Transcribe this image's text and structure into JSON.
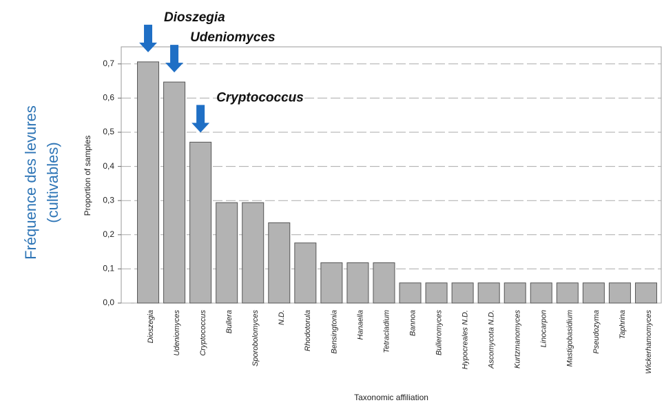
{
  "chart_data": {
    "type": "bar",
    "side_label": [
      "Fréquence des levures",
      "(cultivables)"
    ],
    "ylabel": "Proportion of samples",
    "xlabel": "Taxonomic affiliation",
    "annotations": [
      "Dioszegia",
      "Udeniomyces",
      "Cryptococcus"
    ],
    "categories": [
      "Dioszegia",
      "Udeniomyces",
      "Cryptococcus",
      "Bullera",
      "Sporobolomyces",
      "N.D.",
      "Rhodotorula",
      "Bensingtonia",
      "Hanaella",
      "Tetracladium",
      "Bannoa",
      "Bulleromyces",
      "Hypocreales N.D.",
      "Ascomycota N.D.",
      "Kurtzmanomyces",
      "Linocarpon",
      "Mastigobasidium",
      "Pseudozyma",
      "Taphrina",
      "Wickerhamomyces"
    ],
    "values": [
      0.706,
      0.647,
      0.471,
      0.294,
      0.294,
      0.235,
      0.176,
      0.118,
      0.118,
      0.118,
      0.059,
      0.059,
      0.059,
      0.059,
      0.059,
      0.059,
      0.059,
      0.059,
      0.059,
      0.059
    ],
    "color": "#b3b3b3",
    "arrow_color": "#1f6fc5",
    "ylim": [
      0,
      0.75
    ],
    "yticks": [
      {
        "value": 0,
        "label": "0,0"
      },
      {
        "value": 0.1,
        "label": "0,1"
      },
      {
        "value": 0.2,
        "label": "0,2"
      },
      {
        "value": 0.3,
        "label": "0,3"
      },
      {
        "value": 0.4,
        "label": "0,4"
      },
      {
        "value": 0.5,
        "label": "0,5"
      },
      {
        "value": 0.6,
        "label": "0,6"
      },
      {
        "value": 0.7,
        "label": "0,7"
      }
    ],
    "grid": true
  }
}
